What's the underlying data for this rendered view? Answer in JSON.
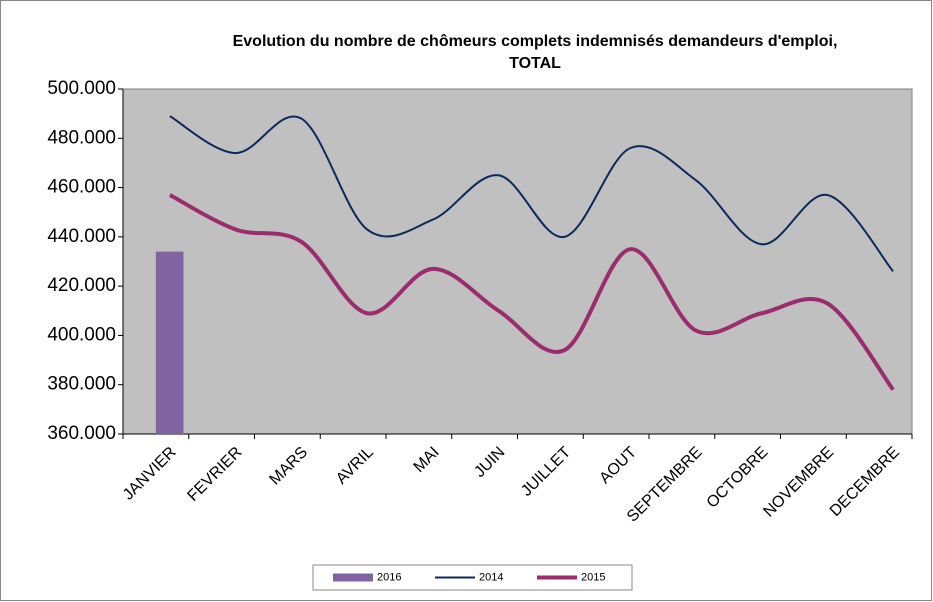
{
  "chart_data": {
    "type": "line",
    "title": "Evolution du nombre de chômeurs complets indemnisés demandeurs d'emploi, TOTAL",
    "categories": [
      "JANVIER",
      "FEVRIER",
      "MARS",
      "AVRIL",
      "MAI",
      "JUIN",
      "JUILLET",
      "AOUT",
      "SEPTEMBRE",
      "OCTOBRE",
      "NOVEMBRE",
      "DECEMBRE"
    ],
    "series": [
      {
        "name": "2016",
        "type": "bar",
        "color": "#8064a2",
        "values": [
          434000,
          null,
          null,
          null,
          null,
          null,
          null,
          null,
          null,
          null,
          null,
          null
        ]
      },
      {
        "name": "2014",
        "type": "line",
        "color": "#0b2a5c",
        "values": [
          489000,
          474000,
          488000,
          443000,
          447000,
          465000,
          440000,
          476000,
          463000,
          437000,
          457000,
          426000
        ]
      },
      {
        "name": "2015",
        "type": "line",
        "color": "#9b2c6e",
        "values": [
          457000,
          443000,
          438000,
          409000,
          427000,
          410000,
          394000,
          435000,
          402000,
          409000,
          413000,
          378000
        ]
      }
    ],
    "ylim": [
      360000,
      500000
    ],
    "yticks": [
      {
        "value": 360000,
        "label": "360.000"
      },
      {
        "value": 380000,
        "label": "380.000"
      },
      {
        "value": 400000,
        "label": "400.000"
      },
      {
        "value": 420000,
        "label": "420.000"
      },
      {
        "value": 440000,
        "label": "440.000"
      },
      {
        "value": 460000,
        "label": "460.000"
      },
      {
        "value": 480000,
        "label": "480.000"
      },
      {
        "value": 500000,
        "label": "500.000"
      }
    ],
    "grid": false,
    "smooth": true,
    "legend": "bottom",
    "plot_background": "#c0c0c0"
  }
}
